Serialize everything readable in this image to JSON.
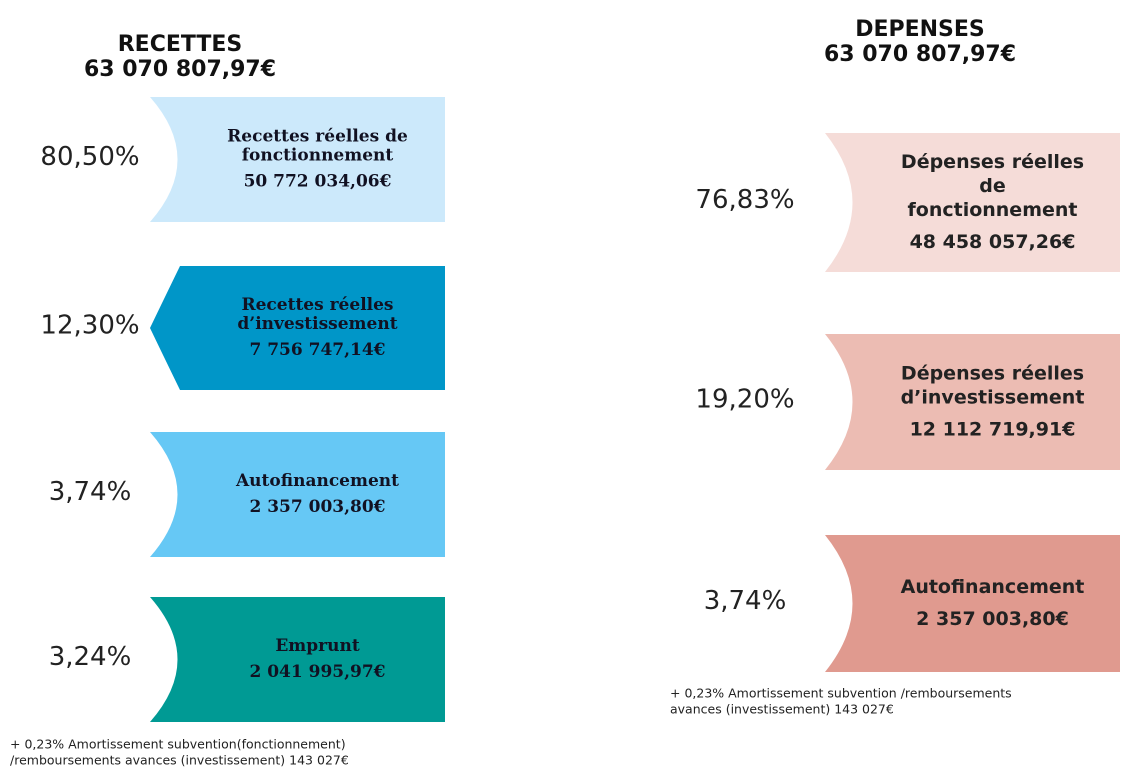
{
  "recettes": {
    "title": "RECETTES",
    "total": "63 070 807,97€",
    "items": [
      {
        "percent": "80,50%",
        "label": [
          "Recettes réelles de",
          "fonctionnement"
        ],
        "amount": "50 772 034,06€"
      },
      {
        "percent": "12,30%",
        "label": [
          "Recettes réelles",
          "d’investissement"
        ],
        "amount": "7 756 747,14€"
      },
      {
        "percent": "3,74%",
        "label": [
          "Autofinancement"
        ],
        "amount": "2 357 003,80€"
      },
      {
        "percent": "3,24%",
        "label": [
          "Emprunt"
        ],
        "amount": "2 041 995,97€"
      }
    ],
    "note": [
      "+ 0,23% Amortissement subvention(fonctionnement)",
      "/remboursements avances (investissement) 143 027€"
    ]
  },
  "depenses": {
    "title": "DEPENSES",
    "total": "63 070 807,97€",
    "items": [
      {
        "percent": "76,83%",
        "label": [
          "Dépenses réelles",
          "de",
          "fonctionnement"
        ],
        "amount": "48 458 057,26€"
      },
      {
        "percent": "19,20%",
        "label": [
          "Dépenses réelles",
          "d’investissement"
        ],
        "amount": "12 112 719,91€"
      },
      {
        "percent": "3,74%",
        "label": [
          "Autofinancement"
        ],
        "amount": "2 357 003,80€"
      }
    ],
    "note": [
      "+ 0,23% Amortissement subvention /remboursements",
      "avances (investissement) 143 027€"
    ]
  }
}
